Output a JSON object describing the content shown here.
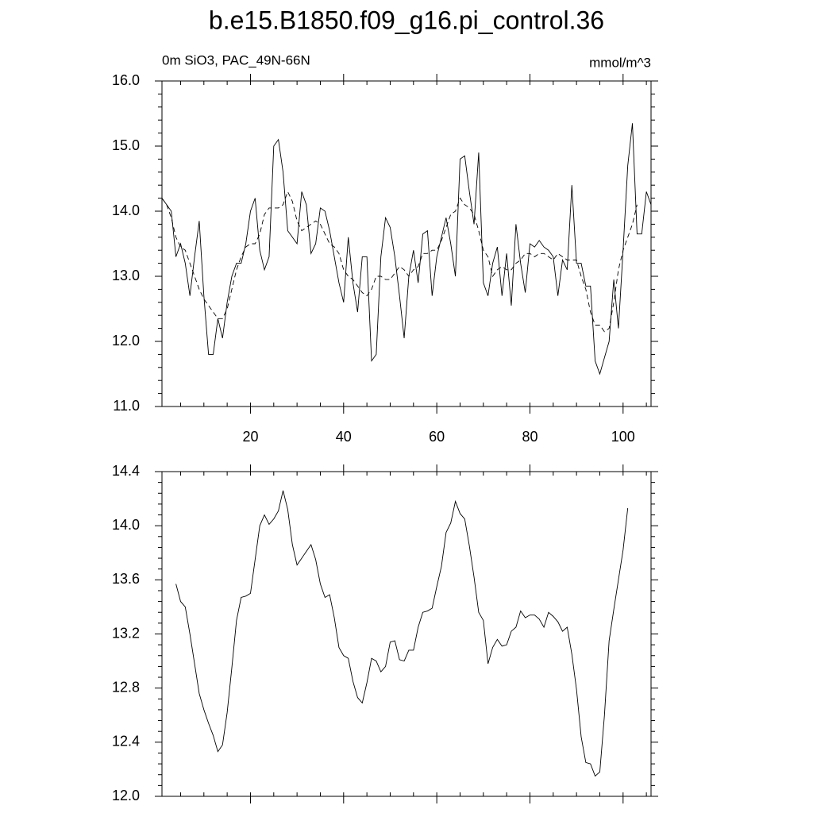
{
  "chart_data": [
    {
      "type": "line",
      "title": "b.e15.B1850.f09_g16.pi_control.36",
      "subtitle_left": "0m SiO3, PAC_49N-66N",
      "subtitle_right": "mmol/m^3",
      "x": [
        1,
        2,
        3,
        4,
        5,
        6,
        7,
        8,
        9,
        10,
        11,
        12,
        13,
        14,
        15,
        16,
        17,
        18,
        19,
        20,
        21,
        22,
        23,
        24,
        25,
        26,
        27,
        28,
        29,
        30,
        31,
        32,
        33,
        34,
        35,
        36,
        37,
        38,
        39,
        40,
        41,
        42,
        43,
        44,
        45,
        46,
        47,
        48,
        49,
        50,
        51,
        52,
        53,
        54,
        55,
        56,
        57,
        58,
        59,
        60,
        61,
        62,
        63,
        64,
        65,
        66,
        67,
        68,
        69,
        70,
        71,
        72,
        73,
        74,
        75,
        76,
        77,
        78,
        79,
        80,
        81,
        82,
        83,
        84,
        85,
        86,
        87,
        88,
        89,
        90,
        91,
        92,
        93,
        94,
        95,
        96,
        97,
        98,
        99,
        100,
        101,
        102,
        103,
        104,
        105,
        106
      ],
      "series": [
        {
          "color": "#000000",
          "dash": false,
          "values": [
            14.2,
            14.1,
            14.0,
            13.3,
            13.5,
            13.2,
            12.7,
            13.3,
            13.85,
            12.7,
            11.8,
            11.8,
            12.35,
            12.05,
            12.6,
            13.0,
            13.2,
            13.2,
            13.5,
            14.0,
            14.2,
            13.4,
            13.1,
            13.3,
            15.0,
            15.1,
            14.6,
            13.7,
            13.6,
            13.5,
            14.3,
            14.1,
            13.35,
            13.5,
            14.05,
            14.0,
            13.7,
            13.3,
            12.9,
            12.6,
            13.6,
            12.9,
            12.45,
            13.3,
            13.3,
            11.7,
            11.8,
            13.3,
            13.9,
            13.75,
            13.3,
            12.7,
            12.05,
            13.0,
            13.4,
            12.9,
            13.65,
            13.7,
            12.7,
            13.3,
            13.6,
            13.9,
            13.5,
            13.0,
            14.8,
            14.85,
            14.3,
            13.8,
            14.9,
            12.9,
            12.7,
            13.2,
            13.45,
            12.7,
            13.35,
            12.55,
            13.8,
            13.2,
            12.75,
            13.5,
            13.45,
            13.55,
            13.45,
            13.4,
            13.3,
            12.7,
            13.25,
            13.1,
            14.4,
            13.2,
            13.2,
            12.85,
            12.85,
            11.7,
            11.5,
            11.75,
            12.0,
            12.95,
            12.2,
            13.4,
            14.7,
            15.35,
            13.65,
            13.65,
            14.3,
            14.1
          ]
        },
        {
          "color": "#000000",
          "dash": true,
          "values": [
            14.2,
            14.1,
            13.9,
            13.6,
            13.45,
            13.4,
            13.2,
            13.0,
            12.8,
            12.65,
            12.55,
            12.45,
            12.35,
            12.35,
            12.5,
            12.8,
            13.1,
            13.3,
            13.45,
            13.5,
            13.5,
            13.65,
            13.95,
            14.05,
            14.05,
            14.05,
            14.1,
            14.3,
            14.15,
            13.85,
            13.7,
            13.75,
            13.8,
            13.85,
            13.8,
            13.65,
            13.5,
            13.45,
            13.35,
            13.1,
            13.0,
            12.95,
            12.85,
            12.75,
            12.7,
            12.8,
            13.0,
            13.0,
            12.95,
            12.95,
            13.05,
            13.15,
            13.1,
            13.0,
            13.1,
            13.15,
            13.35,
            13.35,
            13.4,
            13.4,
            13.55,
            13.75,
            13.95,
            14.0,
            14.2,
            14.1,
            14.05,
            13.95,
            13.7,
            13.4,
            13.3,
            13.0,
            13.1,
            13.15,
            13.1,
            13.1,
            13.2,
            13.25,
            13.35,
            13.35,
            13.3,
            13.35,
            13.35,
            13.3,
            13.25,
            13.35,
            13.3,
            13.25,
            13.25,
            13.25,
            13.0,
            12.8,
            12.45,
            12.25,
            12.25,
            12.15,
            12.2,
            12.6,
            13.1,
            13.4,
            13.6,
            13.8,
            14.1,
            null,
            null,
            null
          ]
        }
      ],
      "xlim": [
        1,
        106
      ],
      "xticks": [
        20,
        40,
        60,
        80,
        100
      ],
      "ylim": [
        11,
        16
      ],
      "yticks": [
        {
          "value": 11,
          "label": "11.0"
        },
        {
          "value": 12,
          "label": "12.0"
        },
        {
          "value": 13,
          "label": "13.0"
        },
        {
          "value": 14,
          "label": "14.0"
        },
        {
          "value": 15,
          "label": "15.0"
        },
        {
          "value": 16,
          "label": "16.0"
        }
      ]
    },
    {
      "type": "line",
      "x": [
        4,
        5,
        6,
        7,
        8,
        9,
        10,
        11,
        12,
        13,
        14,
        15,
        16,
        17,
        18,
        19,
        20,
        21,
        22,
        23,
        24,
        25,
        26,
        27,
        28,
        29,
        30,
        31,
        32,
        33,
        34,
        35,
        36,
        37,
        38,
        39,
        40,
        41,
        42,
        43,
        44,
        45,
        46,
        47,
        48,
        49,
        50,
        51,
        52,
        53,
        54,
        55,
        56,
        57,
        58,
        59,
        60,
        61,
        62,
        63,
        64,
        65,
        66,
        67,
        68,
        69,
        70,
        71,
        72,
        73,
        74,
        75,
        76,
        77,
        78,
        79,
        80,
        81,
        82,
        83,
        84,
        85,
        86,
        87,
        88,
        89,
        90,
        91,
        92,
        93,
        94,
        95,
        96,
        97,
        98,
        99,
        100,
        101
      ],
      "series": [
        {
          "color": "#000000",
          "dash": false,
          "values": [
            13.57,
            13.44,
            13.4,
            13.2,
            12.98,
            12.76,
            12.64,
            12.54,
            12.45,
            12.33,
            12.38,
            12.62,
            12.95,
            13.3,
            13.47,
            13.48,
            13.5,
            13.75,
            14.0,
            14.08,
            14.01,
            14.05,
            14.11,
            14.26,
            14.12,
            13.86,
            13.71,
            13.76,
            13.81,
            13.86,
            13.75,
            13.57,
            13.47,
            13.49,
            13.32,
            13.1,
            13.04,
            13.02,
            12.85,
            12.73,
            12.69,
            12.84,
            13.02,
            13.0,
            12.92,
            12.96,
            13.14,
            13.15,
            13.01,
            13.0,
            13.08,
            13.08,
            13.25,
            13.36,
            13.37,
            13.39,
            13.55,
            13.7,
            13.95,
            14.02,
            14.18,
            14.09,
            14.05,
            13.85,
            13.62,
            13.36,
            13.3,
            12.98,
            13.1,
            13.16,
            13.11,
            13.12,
            13.22,
            13.25,
            13.37,
            13.32,
            13.34,
            13.34,
            13.31,
            13.25,
            13.36,
            13.33,
            13.29,
            13.22,
            13.25,
            13.05,
            12.79,
            12.44,
            12.25,
            12.24,
            12.15,
            12.18,
            12.6,
            13.15,
            13.38,
            13.6,
            13.82,
            14.13
          ]
        }
      ],
      "xlim": [
        1,
        106
      ],
      "xticks": [
        20,
        40,
        60,
        80,
        100
      ],
      "ylim": [
        12,
        14.4
      ],
      "yticks": [
        {
          "value": 12,
          "label": "12.0"
        },
        {
          "value": 12.4,
          "label": "12.4"
        },
        {
          "value": 12.8,
          "label": "12.8"
        },
        {
          "value": 13.2,
          "label": "13.2"
        },
        {
          "value": 13.6,
          "label": "13.6"
        },
        {
          "value": 14,
          "label": "14.0"
        },
        {
          "value": 14.4,
          "label": "14.4"
        }
      ]
    }
  ]
}
